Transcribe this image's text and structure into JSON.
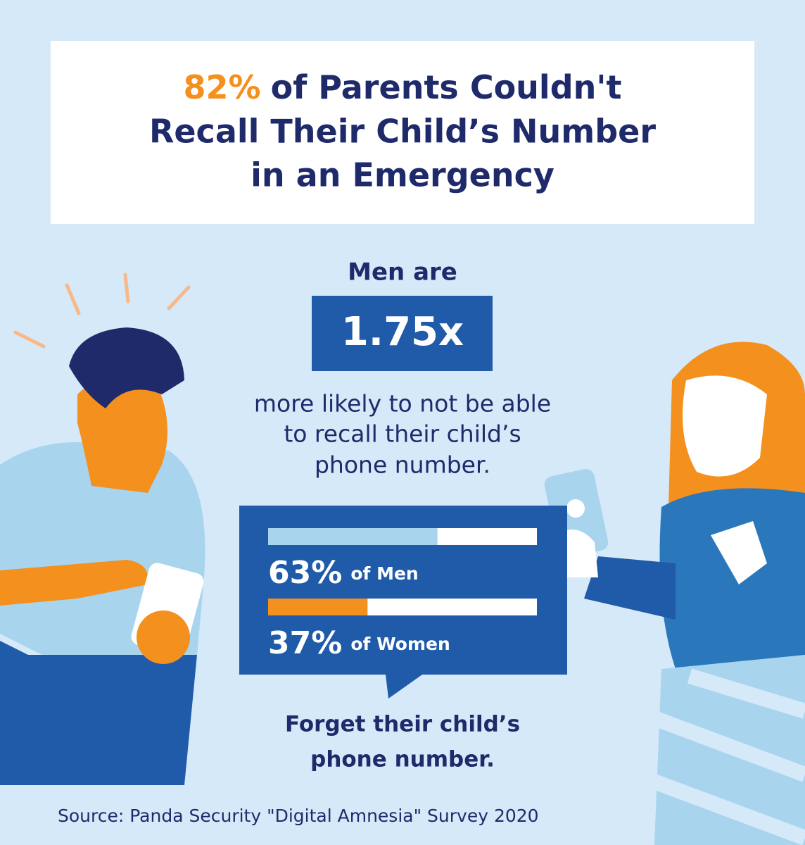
{
  "title": {
    "highlight": "82%",
    "lines": [
      "of Parents Couldn't",
      "Recall Their Child’s Number",
      "in an Emergency"
    ]
  },
  "stat": {
    "lead": "Men are",
    "multiplier": "1.75x",
    "lines": [
      "more likely to not be able",
      "to recall their child’s",
      "phone number."
    ]
  },
  "bars": [
    {
      "value": 63,
      "label": "63%",
      "group": "of Men",
      "color": "#a8d4ee"
    },
    {
      "value": 37,
      "label": "37%",
      "group": "of Women",
      "color": "#f4901e"
    }
  ],
  "xlim": [
    0,
    100
  ],
  "caption": [
    "Forget their child’s",
    "phone number."
  ],
  "source": "Source: Panda Security \"Digital Amnesia\" Survey 2020"
}
